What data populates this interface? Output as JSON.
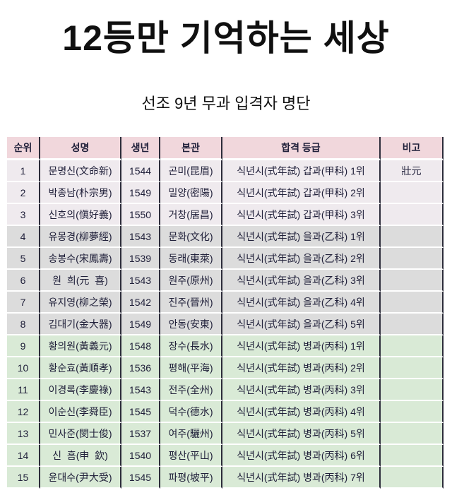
{
  "title": "12등만 기억하는 세상",
  "subtitle": "선조 9년 무과 입격자 명단",
  "colors": {
    "header_bg": "#f1d7dc",
    "tier_gapgwa_bg": "#efeaee",
    "tier_eulgwa_bg": "#dcdcdc",
    "tier_byeonggwa_bg": "#d9ead6",
    "grid_line": "#2c2c3a",
    "row_separator": "#ffffff",
    "cell_text": "#20203a",
    "heading_text": "#101010"
  },
  "table": {
    "columns": [
      {
        "key": "rank",
        "label": "순위"
      },
      {
        "key": "name",
        "label": "성명"
      },
      {
        "key": "birth",
        "label": "생년"
      },
      {
        "key": "origin",
        "label": "본관"
      },
      {
        "key": "grade",
        "label": "합격 등급"
      },
      {
        "key": "note",
        "label": "비고"
      }
    ],
    "rows": [
      {
        "tier": "gap",
        "rank": "1",
        "name": "문명신(文命新)",
        "birth": "1544",
        "origin": "곤미(昆眉)",
        "grade": "식년시(式年試) 갑과(甲科) 1위",
        "note": "壯元"
      },
      {
        "tier": "gap",
        "rank": "2",
        "name": "박종남(朴宗男)",
        "birth": "1549",
        "origin": "밀양(密陽)",
        "grade": "식년시(式年試) 갑과(甲科) 2위",
        "note": ""
      },
      {
        "tier": "gap",
        "rank": "3",
        "name": "신호의(愼好義)",
        "birth": "1550",
        "origin": "거창(居昌)",
        "grade": "식년시(式年試) 갑과(甲科) 3위",
        "note": ""
      },
      {
        "tier": "eul",
        "rank": "4",
        "name": "유몽경(柳夢經)",
        "birth": "1543",
        "origin": "문화(文化)",
        "grade": "식년시(式年試) 을과(乙科) 1위",
        "note": ""
      },
      {
        "tier": "eul",
        "rank": "5",
        "name": "송봉수(宋鳳壽)",
        "birth": "1539",
        "origin": "동래(東萊)",
        "grade": "식년시(式年試) 을과(乙科) 2위",
        "note": ""
      },
      {
        "tier": "eul",
        "rank": "6",
        "name": "원  희(元  喜)",
        "birth": "1543",
        "origin": "원주(原州)",
        "grade": "식년시(式年試) 을과(乙科) 3위",
        "note": ""
      },
      {
        "tier": "eul",
        "rank": "7",
        "name": "유지영(柳之榮)",
        "birth": "1542",
        "origin": "진주(晉州)",
        "grade": "식년시(式年試) 을과(乙科) 4위",
        "note": ""
      },
      {
        "tier": "eul",
        "rank": "8",
        "name": "김대기(金大器)",
        "birth": "1549",
        "origin": "안동(安東)",
        "grade": "식년시(式年試) 을과(乙科) 5위",
        "note": ""
      },
      {
        "tier": "byeong",
        "rank": "9",
        "name": "황의원(黃義元)",
        "birth": "1548",
        "origin": "장수(長水)",
        "grade": "식년시(式年試) 병과(丙科) 1위",
        "note": ""
      },
      {
        "tier": "byeong",
        "rank": "10",
        "name": "황순효(黃順孝)",
        "birth": "1536",
        "origin": "평해(平海)",
        "grade": "식년시(式年試) 병과(丙科) 2위",
        "note": ""
      },
      {
        "tier": "byeong",
        "rank": "11",
        "name": "이경록(李慶祿)",
        "birth": "1543",
        "origin": "전주(全州)",
        "grade": "식년시(式年試) 병과(丙科) 3위",
        "note": ""
      },
      {
        "tier": "byeong",
        "rank": "12",
        "name": "이순신(李舜臣)",
        "birth": "1545",
        "origin": "덕수(德水)",
        "grade": "식년시(式年試) 병과(丙科) 4위",
        "note": ""
      },
      {
        "tier": "byeong",
        "rank": "13",
        "name": "민사준(閔士俊)",
        "birth": "1537",
        "origin": "여주(驪州)",
        "grade": "식년시(式年試) 병과(丙科) 5위",
        "note": ""
      },
      {
        "tier": "byeong",
        "rank": "14",
        "name": "신  흠(申  欽)",
        "birth": "1540",
        "origin": "평산(平山)",
        "grade": "식년시(式年試) 병과(丙科) 6위",
        "note": ""
      },
      {
        "tier": "byeong",
        "rank": "15",
        "name": "윤대수(尹大受)",
        "birth": "1545",
        "origin": "파평(坡平)",
        "grade": "식년시(式年試) 병과(丙科) 7위",
        "note": ""
      }
    ]
  }
}
